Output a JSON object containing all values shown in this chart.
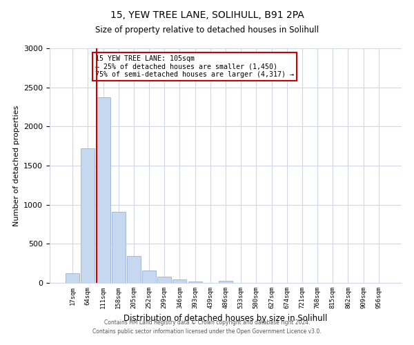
{
  "title": "15, YEW TREE LANE, SOLIHULL, B91 2PA",
  "subtitle": "Size of property relative to detached houses in Solihull",
  "xlabel": "Distribution of detached houses by size in Solihull",
  "ylabel": "Number of detached properties",
  "bar_labels": [
    "17sqm",
    "64sqm",
    "111sqm",
    "158sqm",
    "205sqm",
    "252sqm",
    "299sqm",
    "346sqm",
    "393sqm",
    "439sqm",
    "486sqm",
    "533sqm",
    "580sqm",
    "627sqm",
    "674sqm",
    "721sqm",
    "768sqm",
    "815sqm",
    "862sqm",
    "909sqm",
    "956sqm"
  ],
  "bar_values": [
    120,
    1720,
    2370,
    910,
    345,
    155,
    80,
    40,
    20,
    0,
    30,
    0,
    0,
    0,
    0,
    0,
    0,
    0,
    0,
    0,
    0
  ],
  "bar_color": "#c5d8f0",
  "bar_edge_color": "#a0b8d8",
  "vline_position": 1.55,
  "annotation_title": "15 YEW TREE LANE: 105sqm",
  "annotation_line1": "← 25% of detached houses are smaller (1,450)",
  "annotation_line2": "75% of semi-detached houses are larger (4,317) →",
  "vline_color": "#cc0000",
  "annotation_box_color": "#ffffff",
  "annotation_box_edge": "#cc0000",
  "ylim": [
    0,
    3000
  ],
  "yticks": [
    0,
    500,
    1000,
    1500,
    2000,
    2500,
    3000
  ],
  "footer_line1": "Contains HM Land Registry data © Crown copyright and database right 2024.",
  "footer_line2": "Contains public sector information licensed under the Open Government Licence v3.0.",
  "background_color": "#ffffff",
  "grid_color": "#d0d8e8"
}
